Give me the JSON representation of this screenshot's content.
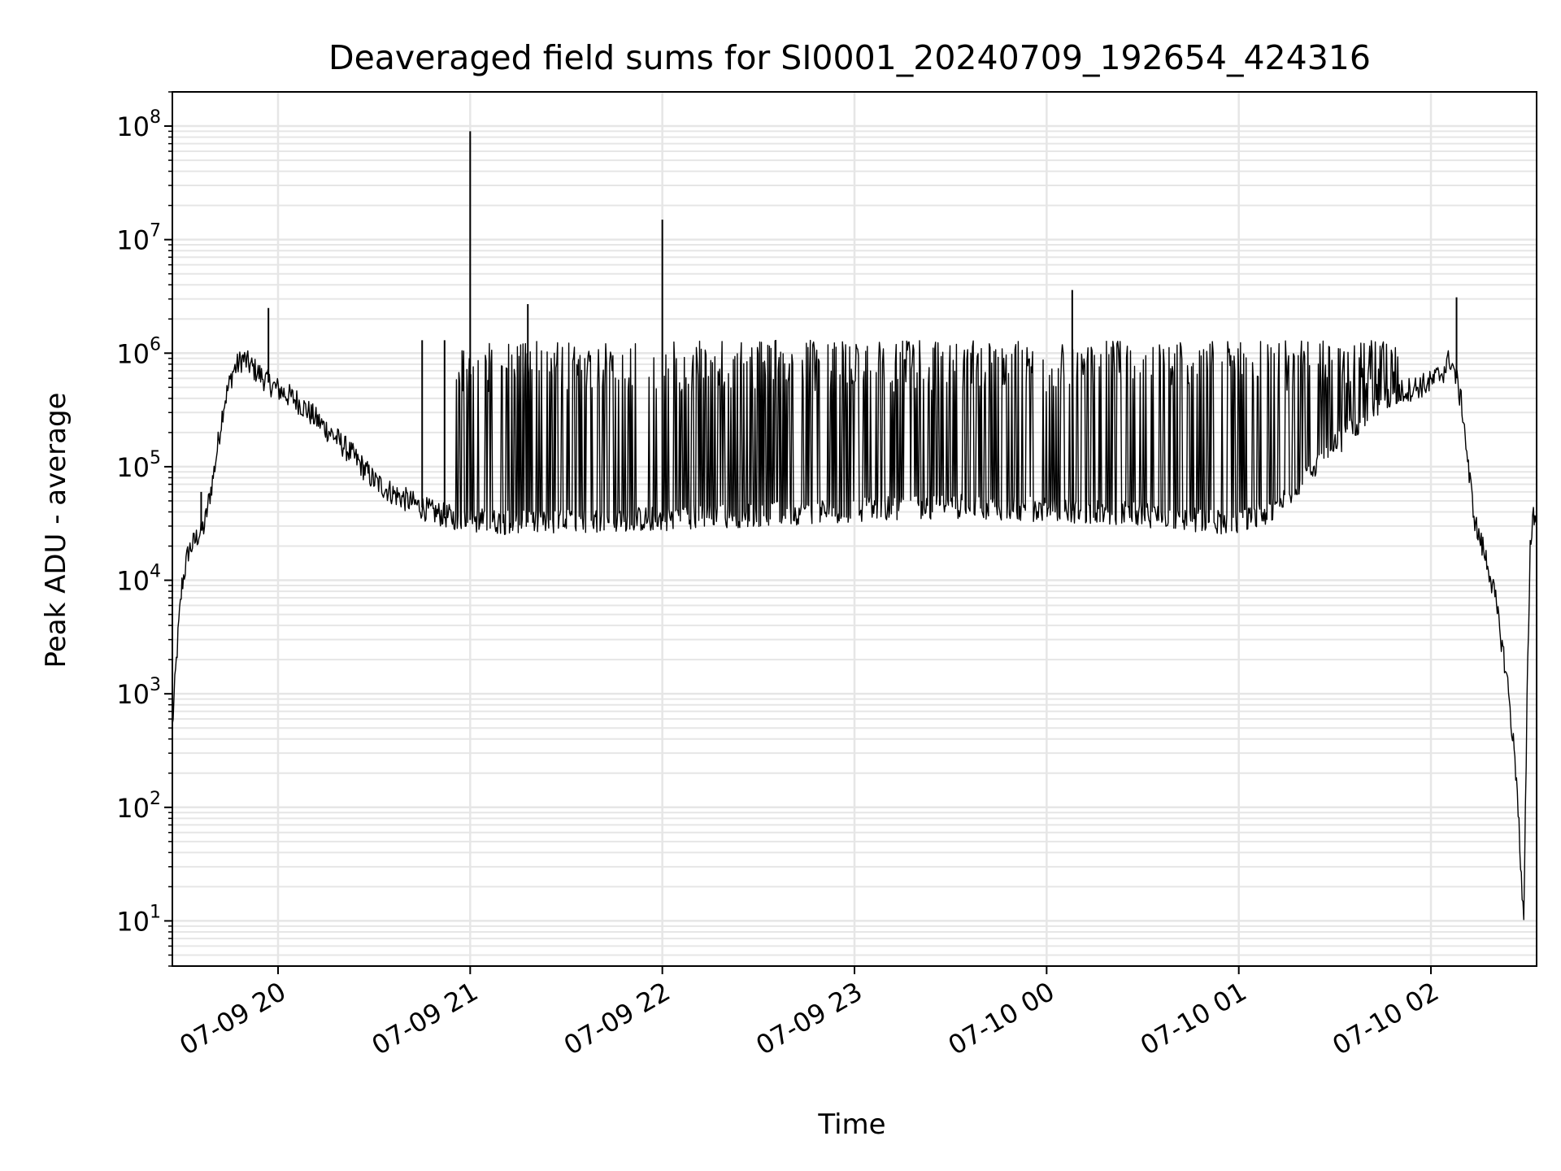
{
  "chart_data": {
    "type": "line",
    "title": "Deaveraged field sums for SI0001_20240709_192654_424316",
    "xlabel": "Time",
    "ylabel": "Peak ADU - average",
    "yscale": "log",
    "ylim": [
      4,
      200000000
    ],
    "xlim": [
      "2024-07-09 19:27",
      "2024-07-10 02:33"
    ],
    "grid": true,
    "line_color": "#000000",
    "grid_color": "#e6e6e6",
    "x_ticks": [
      {
        "label": "07-09 20",
        "t": "2024-07-09 20:00"
      },
      {
        "label": "07-09 21",
        "t": "2024-07-09 21:00"
      },
      {
        "label": "07-09 22",
        "t": "2024-07-09 22:00"
      },
      {
        "label": "07-09 23",
        "t": "2024-07-09 23:00"
      },
      {
        "label": "07-10 00",
        "t": "2024-07-10 00:00"
      },
      {
        "label": "07-10 01",
        "t": "2024-07-10 01:00"
      },
      {
        "label": "07-10 02",
        "t": "2024-07-10 02:00"
      }
    ],
    "y_ticks": [
      {
        "base": "10",
        "exp": "1",
        "value": 10
      },
      {
        "base": "10",
        "exp": "2",
        "value": 100
      },
      {
        "base": "10",
        "exp": "3",
        "value": 1000
      },
      {
        "base": "10",
        "exp": "4",
        "value": 10000
      },
      {
        "base": "10",
        "exp": "5",
        "value": 100000
      },
      {
        "base": "10",
        "exp": "6",
        "value": 1000000
      },
      {
        "base": "10",
        "exp": "7",
        "value": 10000000
      },
      {
        "base": "10",
        "exp": "8",
        "value": 100000000
      }
    ],
    "series": [
      {
        "baseline": {
          "x": [
            "2024-07-09 19:27",
            "2024-07-09 19:28",
            "2024-07-09 19:29",
            "2024-07-09 19:30",
            "2024-07-09 19:32",
            "2024-07-09 19:34",
            "2024-07-09 19:35",
            "2024-07-09 19:37",
            "2024-07-09 19:40",
            "2024-07-09 19:43",
            "2024-07-09 19:46",
            "2024-07-09 19:49",
            "2024-07-09 19:53",
            "2024-07-09 19:57",
            "2024-07-09 20:00",
            "2024-07-09 20:06",
            "2024-07-09 20:12",
            "2024-07-09 20:18",
            "2024-07-09 20:24",
            "2024-07-09 20:30",
            "2024-07-09 20:36",
            "2024-07-09 20:42",
            "2024-07-09 20:48",
            "2024-07-09 20:54",
            "2024-07-09 21:00",
            "2024-07-09 21:15",
            "2024-07-09 21:30",
            "2024-07-09 22:00",
            "2024-07-09 22:30",
            "2024-07-09 23:00",
            "2024-07-09 23:30",
            "2024-07-10 00:00",
            "2024-07-10 00:30",
            "2024-07-10 00:45",
            "2024-07-10 01:00",
            "2024-07-10 01:10",
            "2024-07-10 01:20",
            "2024-07-10 01:30",
            "2024-07-10 01:40",
            "2024-07-10 01:50",
            "2024-07-10 02:00",
            "2024-07-10 02:04",
            "2024-07-10 02:06",
            "2024-07-10 02:08",
            "2024-07-10 02:10",
            "2024-07-10 02:12",
            "2024-07-10 02:14",
            "2024-07-10 02:16",
            "2024-07-10 02:18",
            "2024-07-10 02:20",
            "2024-07-10 02:22",
            "2024-07-10 02:24",
            "2024-07-10 02:26",
            "2024-07-10 02:27",
            "2024-07-10 02:28",
            "2024-07-10 02:29",
            "2024-07-10 02:30",
            "2024-07-10 02:31",
            "2024-07-10 02:32",
            "2024-07-10 02:33"
          ],
          "y": [
            500,
            1500,
            4000,
            9000,
            18000,
            22000,
            25000,
            30000,
            90000,
            350000,
            700000,
            900000,
            700000,
            550000,
            480000,
            380000,
            260000,
            180000,
            120000,
            75000,
            58000,
            48000,
            40000,
            36000,
            34000,
            32000,
            33000,
            35000,
            38000,
            42000,
            45000,
            42000,
            38000,
            34000,
            32000,
            40000,
            80000,
            150000,
            300000,
            450000,
            550000,
            700000,
            900000,
            600000,
            300000,
            80000,
            30000,
            20000,
            13000,
            7000,
            3000,
            1200,
            300,
            150,
            30,
            9,
            800,
            20000,
            40000,
            35000
          ]
        },
        "spike_region_x": [
          "2024-07-09 20:55",
          "2024-07-10 01:50"
        ],
        "spike_max": 1300000,
        "spikes": [
          {
            "x": "2024-07-09 21:00",
            "y": 90000000
          },
          {
            "x": "2024-07-09 22:00",
            "y": 15000000
          },
          {
            "x": "2024-07-09 21:18",
            "y": 2700000
          },
          {
            "x": "2024-07-10 00:08",
            "y": 3600000
          },
          {
            "x": "2024-07-10 02:08",
            "y": 3100000
          },
          {
            "x": "2024-07-09 19:57",
            "y": 2500000
          },
          {
            "x": "2024-07-09 20:45",
            "y": 1300000
          },
          {
            "x": "2024-07-09 20:52",
            "y": 1300000
          },
          {
            "x": "2024-07-09 19:36",
            "y": 60000
          }
        ]
      }
    ]
  }
}
